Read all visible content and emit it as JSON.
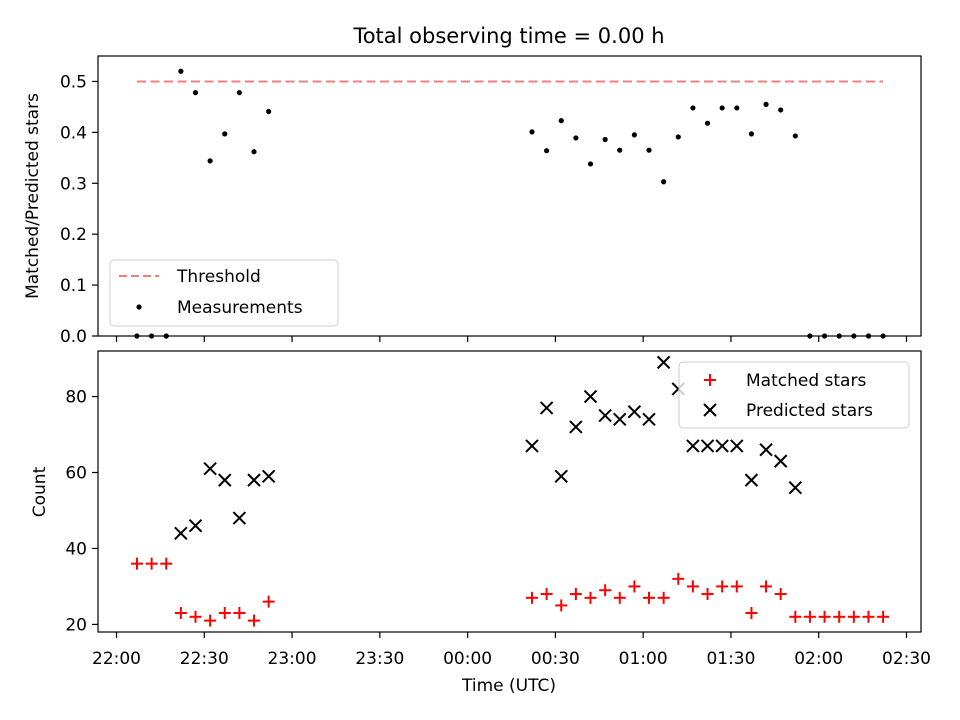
{
  "chart_data": [
    {
      "type": "scatter",
      "title": "Total observing time = 0.00 h",
      "xlabel": "",
      "ylabel": "Matched/Predicted stars",
      "ylim": [
        0,
        0.55
      ],
      "yticks": [
        "0.0",
        "0.1",
        "0.2",
        "0.3",
        "0.4",
        "0.5"
      ],
      "legend_position": "lower-left",
      "threshold": {
        "name": "Threshold",
        "value": 0.5,
        "x_start": "22:07",
        "x_end": "02:22",
        "color": "#f08080",
        "style": "dashed"
      },
      "series": [
        {
          "name": "Measurements",
          "color": "#000000",
          "marker": "dot",
          "points": [
            [
              "22:07",
              0.0
            ],
            [
              "22:12",
              0.0
            ],
            [
              "22:17",
              0.0
            ],
            [
              "22:22",
              0.52
            ],
            [
              "22:27",
              0.478
            ],
            [
              "22:32",
              0.344
            ],
            [
              "22:37",
              0.397
            ],
            [
              "22:42",
              0.478
            ],
            [
              "22:47",
              0.362
            ],
            [
              "22:52",
              0.441
            ],
            [
              "00:22",
              0.401
            ],
            [
              "00:27",
              0.364
            ],
            [
              "00:32",
              0.423
            ],
            [
              "00:37",
              0.389
            ],
            [
              "00:42",
              0.338
            ],
            [
              "00:47",
              0.386
            ],
            [
              "00:52",
              0.365
            ],
            [
              "00:57",
              0.395
            ],
            [
              "01:02",
              0.365
            ],
            [
              "01:07",
              0.303
            ],
            [
              "01:12",
              0.391
            ],
            [
              "01:17",
              0.448
            ],
            [
              "01:22",
              0.418
            ],
            [
              "01:27",
              0.448
            ],
            [
              "01:32",
              0.448
            ],
            [
              "01:37",
              0.397
            ],
            [
              "01:42",
              0.455
            ],
            [
              "01:47",
              0.444
            ],
            [
              "01:52",
              0.393
            ],
            [
              "01:57",
              0.0
            ],
            [
              "02:02",
              0.0
            ],
            [
              "02:07",
              0.0
            ],
            [
              "02:12",
              0.0
            ],
            [
              "02:17",
              0.0
            ],
            [
              "02:22",
              0.0
            ]
          ]
        }
      ]
    },
    {
      "type": "scatter",
      "title": "",
      "xlabel": "Time (UTC)",
      "ylabel": "Count",
      "xlim": [
        "22:00",
        "02:30"
      ],
      "ylim": [
        18,
        92
      ],
      "xticks": [
        "22:00",
        "22:30",
        "23:00",
        "23:30",
        "00:00",
        "00:30",
        "01:00",
        "01:30",
        "02:00",
        "02:30"
      ],
      "yticks": [
        "20",
        "40",
        "60",
        "80"
      ],
      "legend_position": "upper-right",
      "series": [
        {
          "name": "Matched stars",
          "color": "#ff0000",
          "marker": "plus",
          "points": [
            [
              "22:07",
              36
            ],
            [
              "22:12",
              36
            ],
            [
              "22:17",
              36
            ],
            [
              "22:22",
              23
            ],
            [
              "22:27",
              22
            ],
            [
              "22:32",
              21
            ],
            [
              "22:37",
              23
            ],
            [
              "22:42",
              23
            ],
            [
              "22:47",
              21
            ],
            [
              "22:52",
              26
            ],
            [
              "00:22",
              27
            ],
            [
              "00:27",
              28
            ],
            [
              "00:32",
              25
            ],
            [
              "00:37",
              28
            ],
            [
              "00:42",
              27
            ],
            [
              "00:47",
              29
            ],
            [
              "00:52",
              27
            ],
            [
              "00:57",
              30
            ],
            [
              "01:02",
              27
            ],
            [
              "01:07",
              27
            ],
            [
              "01:12",
              32
            ],
            [
              "01:17",
              30
            ],
            [
              "01:22",
              28
            ],
            [
              "01:27",
              30
            ],
            [
              "01:32",
              30
            ],
            [
              "01:37",
              23
            ],
            [
              "01:42",
              30
            ],
            [
              "01:47",
              28
            ],
            [
              "01:52",
              22
            ],
            [
              "01:57",
              22
            ],
            [
              "02:02",
              22
            ],
            [
              "02:07",
              22
            ],
            [
              "02:12",
              22
            ],
            [
              "02:17",
              22
            ],
            [
              "02:22",
              22
            ]
          ]
        },
        {
          "name": "Predicted stars",
          "color": "#000000",
          "marker": "x",
          "points": [
            [
              "22:22",
              44
            ],
            [
              "22:27",
              46
            ],
            [
              "22:32",
              61
            ],
            [
              "22:37",
              58
            ],
            [
              "22:42",
              48
            ],
            [
              "22:47",
              58
            ],
            [
              "22:52",
              59
            ],
            [
              "00:22",
              67
            ],
            [
              "00:27",
              77
            ],
            [
              "00:32",
              59
            ],
            [
              "00:37",
              72
            ],
            [
              "00:42",
              80
            ],
            [
              "00:47",
              75
            ],
            [
              "00:52",
              74
            ],
            [
              "00:57",
              76
            ],
            [
              "01:02",
              74
            ],
            [
              "01:07",
              89
            ],
            [
              "01:12",
              82
            ],
            [
              "01:17",
              67
            ],
            [
              "01:22",
              67
            ],
            [
              "01:27",
              67
            ],
            [
              "01:32",
              67
            ],
            [
              "01:37",
              58
            ],
            [
              "01:42",
              66
            ],
            [
              "01:47",
              63
            ],
            [
              "01:52",
              56
            ]
          ]
        }
      ]
    }
  ]
}
